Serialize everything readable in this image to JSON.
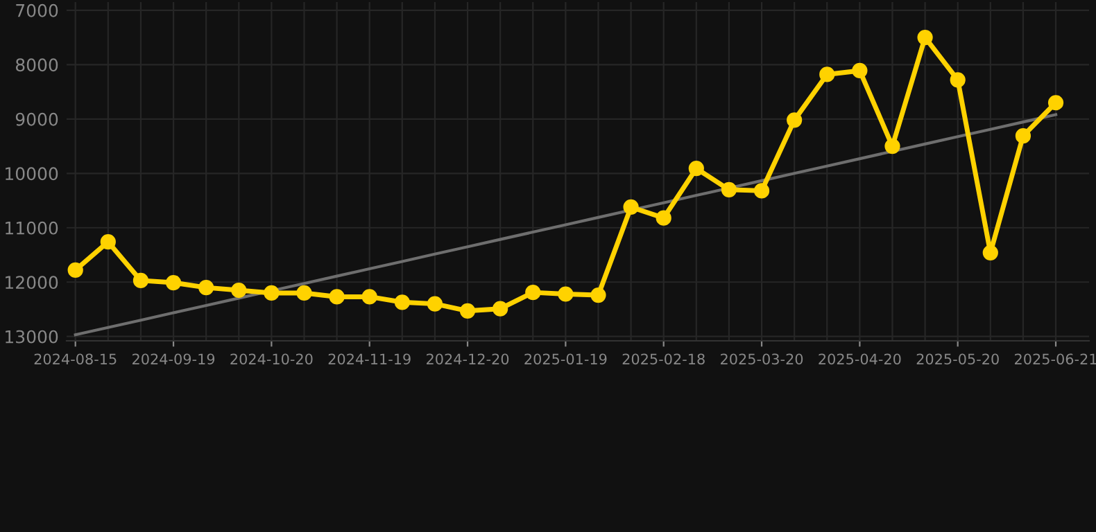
{
  "chart_data": {
    "type": "line",
    "categories": [
      "2024-08-15",
      null,
      null,
      "2024-09-19",
      null,
      null,
      "2024-10-20",
      null,
      null,
      "2024-11-19",
      null,
      null,
      "2024-12-20",
      null,
      null,
      "2025-01-19",
      null,
      null,
      "2025-02-18",
      null,
      null,
      "2025-03-20",
      null,
      null,
      "2025-04-20",
      null,
      null,
      "2025-05-20",
      null,
      null,
      "2025-06-21"
    ],
    "series": [
      {
        "color": "#ffd200",
        "marker": "circle",
        "values": [
          11780,
          11260,
          11970,
          12010,
          12100,
          12150,
          12200,
          12200,
          12270,
          12270,
          12370,
          12400,
          12530,
          12490,
          12190,
          12220,
          12240,
          10620,
          10820,
          9910,
          10300,
          10320,
          9020,
          8180,
          8110,
          9500,
          7500,
          8280,
          11460,
          9310,
          8700
        ]
      },
      {
        "type": "line",
        "color": "#6e6e6e",
        "marker": "none",
        "values": [
          12970,
          12835,
          12700,
          12565,
          12430,
          12295,
          12160,
          12025,
          11890,
          11755,
          11620,
          11485,
          11350,
          11215,
          11080,
          10945,
          10810,
          10675,
          10540,
          10405,
          10270,
          10135,
          10000,
          9865,
          9730,
          9595,
          9460,
          9325,
          9190,
          9055,
          8920
        ]
      }
    ],
    "ylim": [
      13080,
      6850
    ],
    "yticks": [
      7000,
      8000,
      9000,
      10000,
      11000,
      12000,
      13000
    ],
    "grid": true
  }
}
